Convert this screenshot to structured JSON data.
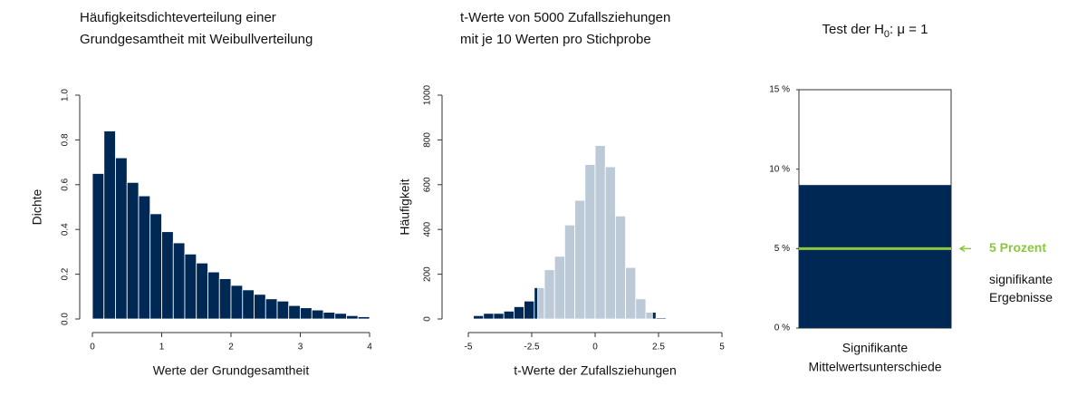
{
  "chart_data": [
    {
      "type": "histogram",
      "title": [
        "Häufigkeitsdichteverteilung einer",
        "Grundgesamtheit mit Weibullverteilung"
      ],
      "xlabel": "Werte der Grundgesamtheit",
      "ylabel": "Dichte",
      "bins": [
        0,
        0.167,
        0.333,
        0.5,
        0.667,
        0.833,
        1,
        1.167,
        1.333,
        1.5,
        1.667,
        1.833,
        2,
        2.167,
        2.333,
        2.5,
        2.667,
        2.833,
        3,
        3.167,
        3.333,
        3.5,
        3.667,
        3.833,
        4
      ],
      "values": [
        0.65,
        0.84,
        0.72,
        0.61,
        0.55,
        0.47,
        0.39,
        0.34,
        0.29,
        0.25,
        0.21,
        0.18,
        0.15,
        0.13,
        0.11,
        0.09,
        0.08,
        0.06,
        0.05,
        0.04,
        0.03,
        0.025,
        0.015,
        0.01
      ],
      "color": "#002855",
      "xlim": [
        0,
        4
      ],
      "xticks": [
        0,
        1,
        2,
        3,
        4
      ],
      "ylim": [
        0,
        1
      ],
      "yticks": [
        {
          "value": 0,
          "label": "0.0"
        },
        0.2,
        0.4,
        0.6,
        0.8,
        {
          "value": 1,
          "label": "1.0"
        }
      ]
    },
    {
      "type": "histogram",
      "title": [
        "t-Werte von 5000 Zufallsziehungen",
        "mit je 10 Werten pro Stichprobe"
      ],
      "xlabel": "t-Werte der Zufallsziehungen",
      "ylabel": "Häufigkeit",
      "bins": [
        -5.2,
        -4.8,
        -4.4,
        -4.0,
        -3.6,
        -3.2,
        -2.8,
        -2.4,
        -2.26,
        -2.0,
        -1.6,
        -1.2,
        -0.8,
        -0.4,
        0,
        0.4,
        0.8,
        1.2,
        1.6,
        2.0,
        2.26,
        2.4,
        2.8
      ],
      "values": [
        3,
        15,
        25,
        25,
        35,
        55,
        80,
        140,
        140,
        220,
        280,
        420,
        530,
        690,
        775,
        680,
        460,
        230,
        90,
        30,
        30,
        5
      ],
      "bar_colors": [
        "#002855",
        "#002855",
        "#002855",
        "#002855",
        "#002855",
        "#002855",
        "#002855",
        "#002855",
        "#bccad8",
        "#bccad8",
        "#bccad8",
        "#bccad8",
        "#bccad8",
        "#bccad8",
        "#bccad8",
        "#bccad8",
        "#bccad8",
        "#bccad8",
        "#bccad8",
        "#bccad8",
        "#002855",
        "#002855"
      ],
      "xlim": [
        -5,
        5
      ],
      "xticks": [
        -5,
        -2.5,
        0,
        2.5,
        5
      ],
      "ylim": [
        0,
        1000
      ],
      "yticks": [
        0,
        200,
        400,
        600,
        800,
        1000
      ]
    },
    {
      "type": "bar",
      "title": {
        "text": "Test der H",
        "sub": "0",
        "rest": ": μ = 1"
      },
      "xlabel": [
        "Signifikante",
        "Mittelwertsunterschiede"
      ],
      "values": [
        9
      ],
      "color": "#002855",
      "ylim": [
        0,
        15
      ],
      "yticks": [
        {
          "value": 0,
          "label": "0 %"
        },
        {
          "value": 5,
          "label": "5 %"
        },
        {
          "value": 10,
          "label": "10 %"
        },
        {
          "value": 15,
          "label": "15 %"
        }
      ],
      "reference_line": {
        "value": 5,
        "label": "5 Prozent",
        "color": "#8dc63f"
      },
      "annotation": [
        "signifikante",
        "Ergebnisse"
      ]
    }
  ]
}
